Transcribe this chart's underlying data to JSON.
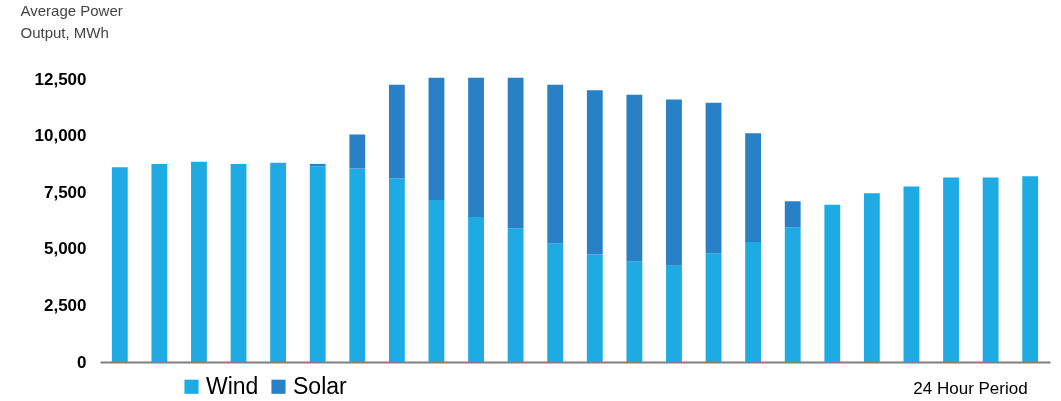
{
  "chart_data": {
    "type": "bar",
    "stacked": true,
    "ylabel": "Average Power Output, MWh",
    "xlabel": "24 Hour Period",
    "categories": [
      null,
      null,
      null,
      null,
      null,
      null,
      null,
      null,
      null,
      null,
      null,
      null,
      null,
      null,
      null,
      null,
      null,
      null,
      null,
      null,
      null,
      null,
      null,
      null
    ],
    "series": [
      {
        "name": "Wind",
        "color": "#1eaae2",
        "values": [
          8600,
          8750,
          8850,
          8750,
          8800,
          8650,
          8550,
          8100,
          7150,
          6400,
          5900,
          5250,
          4750,
          4450,
          4250,
          4800,
          5300,
          5950,
          6950,
          7450,
          7750,
          8150,
          8150,
          8200
        ]
      },
      {
        "name": "Solar",
        "color": "#2880c6",
        "values": [
          0,
          0,
          0,
          0,
          0,
          100,
          1500,
          4150,
          5400,
          6150,
          6650,
          7000,
          7250,
          7350,
          7350,
          6650,
          4800,
          1150,
          0,
          0,
          0,
          0,
          0,
          0
        ]
      }
    ],
    "ylim": [
      0,
      12500
    ],
    "yticks": [
      0,
      {
        "value": 2500,
        "label": "2,500"
      },
      {
        "value": 5000,
        "label": "5,000"
      },
      {
        "value": 7500,
        "label": "7,500"
      },
      {
        "value": 10000,
        "label": "10,000"
      },
      {
        "value": 12500,
        "label": "12,500"
      }
    ],
    "grid": false,
    "legend": "bottom left",
    "tick_labels": "y"
  }
}
